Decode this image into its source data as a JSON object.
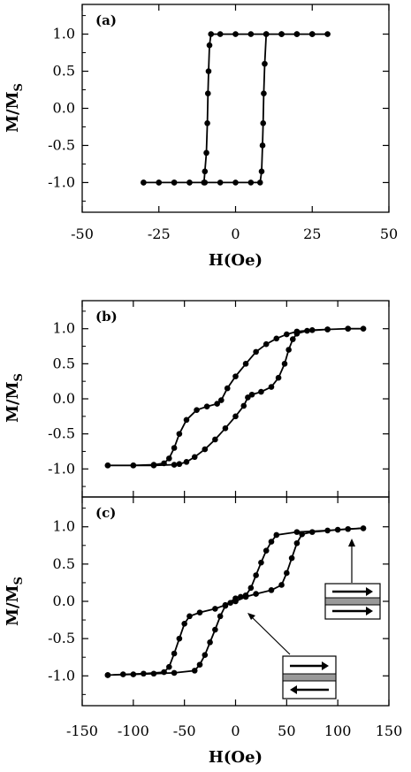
{
  "chart_data": [
    {
      "panel": "(a)",
      "type": "scatter",
      "ylabel": "M/M",
      "ylabel_sub": "S",
      "xlabel": "H(Oe)",
      "xlim": [
        -50,
        50
      ],
      "ylim": [
        -1.4,
        1.4
      ],
      "xticks": [
        "-50",
        "-25",
        "0",
        "25",
        "50"
      ],
      "yticks": [
        "1.0",
        "0.5",
        "0.0",
        "-0.5",
        "-1.0"
      ],
      "series": [
        {
          "values": [
            [
              -30,
              -1.0
            ],
            [
              -25,
              -1.0
            ],
            [
              -20,
              -1.0
            ],
            [
              -15,
              -1.0
            ],
            [
              -10,
              -1.0
            ],
            [
              -5,
              -1.0
            ],
            [
              0,
              -1.0
            ],
            [
              5,
              -1.0
            ],
            [
              8,
              -1.0
            ],
            [
              8.5,
              -0.85
            ],
            [
              8.8,
              -0.5
            ],
            [
              9,
              -0.2
            ],
            [
              9.2,
              0.2
            ],
            [
              9.5,
              0.6
            ],
            [
              10,
              1.0
            ],
            [
              15,
              1.0
            ],
            [
              20,
              1.0
            ],
            [
              25,
              1.0
            ],
            [
              30,
              1.0
            ],
            [
              25,
              1.0
            ],
            [
              20,
              1.0
            ],
            [
              15,
              1.0
            ],
            [
              10,
              1.0
            ],
            [
              5,
              1.0
            ],
            [
              0,
              1.0
            ],
            [
              -5,
              1.0
            ],
            [
              -8,
              1.0
            ],
            [
              -8.5,
              0.85
            ],
            [
              -8.8,
              0.5
            ],
            [
              -9,
              0.2
            ],
            [
              -9.2,
              -0.2
            ],
            [
              -9.5,
              -0.6
            ],
            [
              -10,
              -0.85
            ],
            [
              -10.3,
              -1.0
            ],
            [
              -15,
              -1.0
            ],
            [
              -20,
              -1.0
            ],
            [
              -25,
              -1.0
            ],
            [
              -30,
              -1.0
            ]
          ]
        }
      ]
    },
    {
      "panel": "(b)",
      "type": "scatter",
      "ylabel": "M/M",
      "ylabel_sub": "S",
      "xlabel": "",
      "xlim": [
        -150,
        150
      ],
      "ylim": [
        -1.4,
        1.4
      ],
      "xticks": [],
      "yticks": [
        "1.0",
        "0.5",
        "0.0",
        "-0.5",
        "-1.0"
      ],
      "series": [
        {
          "values": [
            [
              -125,
              -0.95
            ],
            [
              -100,
              -0.95
            ],
            [
              -80,
              -0.95
            ],
            [
              -60,
              -0.94
            ],
            [
              -55,
              -0.93
            ],
            [
              -48,
              -0.9
            ],
            [
              -40,
              -0.83
            ],
            [
              -30,
              -0.72
            ],
            [
              -20,
              -0.58
            ],
            [
              -10,
              -0.42
            ],
            [
              0,
              -0.25
            ],
            [
              8,
              -0.1
            ],
            [
              12,
              0.02
            ],
            [
              16,
              0.06
            ],
            [
              25,
              0.1
            ],
            [
              35,
              0.17
            ],
            [
              42,
              0.3
            ],
            [
              48,
              0.5
            ],
            [
              52,
              0.7
            ],
            [
              56,
              0.85
            ],
            [
              60,
              0.93
            ],
            [
              70,
              0.97
            ],
            [
              90,
              0.99
            ],
            [
              110,
              1.0
            ],
            [
              125,
              1.0
            ],
            [
              110,
              1.0
            ],
            [
              90,
              0.99
            ],
            [
              75,
              0.98
            ],
            [
              60,
              0.96
            ],
            [
              50,
              0.92
            ],
            [
              40,
              0.86
            ],
            [
              30,
              0.78
            ],
            [
              20,
              0.67
            ],
            [
              10,
              0.5
            ],
            [
              0,
              0.32
            ],
            [
              -8,
              0.15
            ],
            [
              -14,
              -0.02
            ],
            [
              -18,
              -0.07
            ],
            [
              -28,
              -0.11
            ],
            [
              -38,
              -0.16
            ],
            [
              -48,
              -0.3
            ],
            [
              -55,
              -0.5
            ],
            [
              -60,
              -0.7
            ],
            [
              -65,
              -0.85
            ],
            [
              -70,
              -0.92
            ],
            [
              -80,
              -0.94
            ],
            [
              -100,
              -0.95
            ],
            [
              -125,
              -0.95
            ]
          ]
        }
      ]
    },
    {
      "panel": "(c)",
      "type": "scatter",
      "ylabel": "M/M",
      "ylabel_sub": "S",
      "xlabel": "H(Oe)",
      "xlim": [
        -150,
        150
      ],
      "ylim": [
        -1.4,
        1.4
      ],
      "xticks": [
        "-150",
        "-100",
        "-50",
        "0",
        "50",
        "100",
        "150"
      ],
      "yticks": [
        "1.0",
        "0.5",
        "0.0",
        "-0.5",
        "-1.0"
      ],
      "series": [
        {
          "values": [
            [
              -125,
              -0.99
            ],
            [
              -100,
              -0.98
            ],
            [
              -80,
              -0.97
            ],
            [
              -60,
              -0.96
            ],
            [
              -40,
              -0.93
            ],
            [
              -35,
              -0.85
            ],
            [
              -30,
              -0.72
            ],
            [
              -25,
              -0.55
            ],
            [
              -20,
              -0.38
            ],
            [
              -15,
              -0.2
            ],
            [
              -10,
              -0.06
            ],
            [
              -5,
              -0.02
            ],
            [
              0,
              0.0
            ],
            [
              10,
              0.06
            ],
            [
              20,
              0.1
            ],
            [
              35,
              0.15
            ],
            [
              45,
              0.22
            ],
            [
              50,
              0.38
            ],
            [
              55,
              0.58
            ],
            [
              60,
              0.78
            ],
            [
              65,
              0.9
            ],
            [
              75,
              0.93
            ],
            [
              100,
              0.96
            ],
            [
              125,
              0.98
            ],
            [
              110,
              0.97
            ],
            [
              90,
              0.95
            ],
            [
              60,
              0.93
            ],
            [
              40,
              0.89
            ],
            [
              35,
              0.8
            ],
            [
              30,
              0.68
            ],
            [
              25,
              0.52
            ],
            [
              20,
              0.35
            ],
            [
              15,
              0.18
            ],
            [
              10,
              0.08
            ],
            [
              5,
              0.06
            ],
            [
              0,
              0.04
            ],
            [
              -10,
              -0.05
            ],
            [
              -20,
              -0.1
            ],
            [
              -35,
              -0.15
            ],
            [
              -45,
              -0.2
            ],
            [
              -50,
              -0.3
            ],
            [
              -55,
              -0.5
            ],
            [
              -60,
              -0.7
            ],
            [
              -65,
              -0.88
            ],
            [
              -70,
              -0.95
            ],
            [
              -90,
              -0.97
            ],
            [
              -110,
              -0.98
            ],
            [
              -125,
              -0.99
            ]
          ]
        }
      ]
    }
  ]
}
